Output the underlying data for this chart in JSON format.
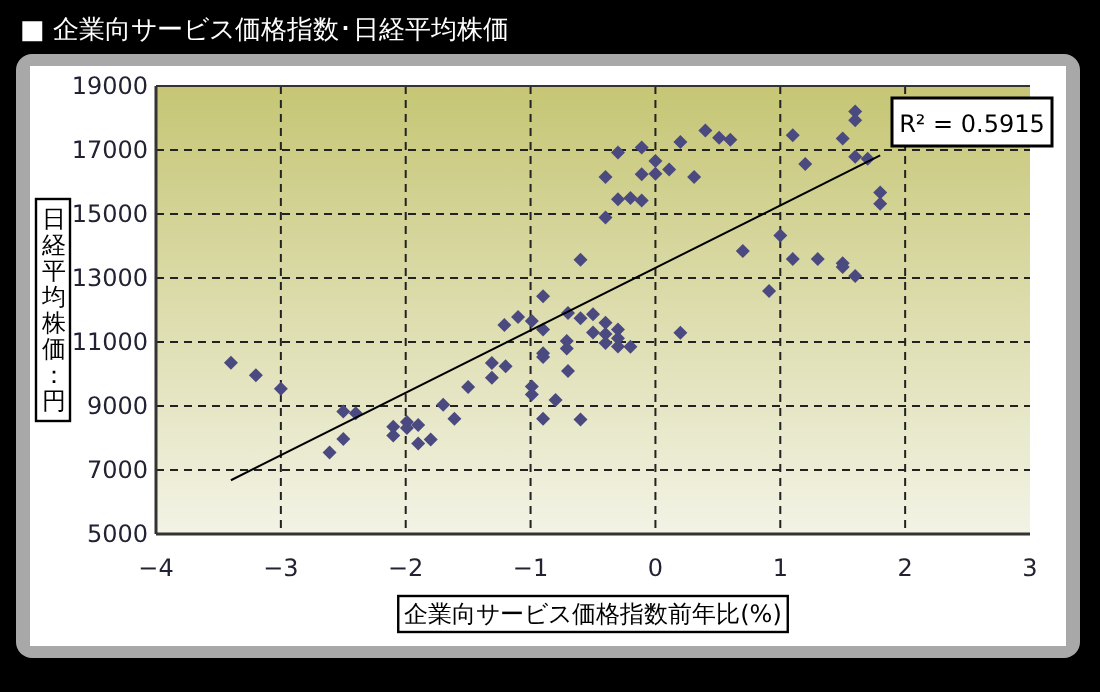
{
  "chart_data": {
    "type": "scatter",
    "title": "■ 企業向サービス価格指数･日経平均株価",
    "xlabel": "企業向サービス価格指数前年比(%)",
    "ylabel": "日経平均株価：円",
    "xlim": [
      -4,
      3
    ],
    "xticks": [
      -4,
      -3,
      -2,
      -1,
      0,
      1,
      2,
      3
    ],
    "ylim": [
      5000,
      19000
    ],
    "yticks": [
      5000,
      7000,
      9000,
      11000,
      13000,
      15000,
      17000,
      19000
    ],
    "grid": true,
    "annotations": [
      "R² = 0.5915"
    ],
    "series": [
      {
        "marker": "diamond",
        "color": "#4a4a80",
        "x": [
          -3.4,
          -3.2,
          -3.0,
          -2.5,
          -2.4,
          -2.5,
          -2.61,
          -2.1,
          -2.1,
          -1.99,
          -1.99,
          -1.9,
          -1.9,
          -1.8,
          -1.7,
          -1.61,
          -1.5,
          -1.31,
          -1.31,
          -1.2,
          -1.21,
          -1.1,
          -0.99,
          -0.99,
          -0.99,
          -0.9,
          -0.9,
          -0.9,
          -0.9,
          -0.9,
          -0.8,
          -0.7,
          -0.71,
          -0.71,
          -0.7,
          -0.6,
          -0.6,
          -0.5,
          -0.5,
          -0.4,
          -0.4,
          -0.4,
          -0.3,
          -0.3,
          -0.3,
          -0.2,
          0.2,
          0.91,
          -0.6,
          -0.4,
          -0.4,
          -0.3,
          -0.3,
          -0.2,
          -0.11,
          -0.11,
          -0.11,
          0.0,
          0.0,
          0.11,
          0.2,
          0.31,
          0.4,
          0.51,
          0.6,
          0.7,
          1.0,
          1.1,
          1.2,
          1.1,
          1.3,
          1.5,
          1.5,
          1.5,
          1.6,
          1.6,
          1.6,
          1.7,
          1.6,
          1.8,
          1.8
        ],
        "values": [
          10350,
          9960,
          9540,
          8830,
          8770,
          7970,
          7550,
          8350,
          8080,
          8500,
          8310,
          8410,
          7830,
          7950,
          9040,
          8600,
          9590,
          10340,
          9880,
          10240,
          11530,
          11780,
          11660,
          9610,
          9360,
          12430,
          11390,
          10650,
          10530,
          8600,
          9190,
          11910,
          11030,
          10800,
          10090,
          11740,
          8580,
          11870,
          11300,
          11600,
          10970,
          11250,
          11390,
          10860,
          11120,
          10850,
          11290,
          12590,
          13570,
          14890,
          16160,
          16920,
          15460,
          15500,
          17080,
          16240,
          15420,
          16660,
          16260,
          16390,
          17250,
          16160,
          17610,
          17380,
          17320,
          13840,
          14330,
          17460,
          16560,
          13590,
          13590,
          17360,
          13460,
          13340,
          18200,
          17930,
          16790,
          16730,
          13060,
          15670,
          15320
        ]
      },
      {
        "type": "line",
        "color": "#000000",
        "x": [
          -3.4,
          1.8
        ],
        "values": [
          6680,
          16830
        ]
      }
    ]
  }
}
